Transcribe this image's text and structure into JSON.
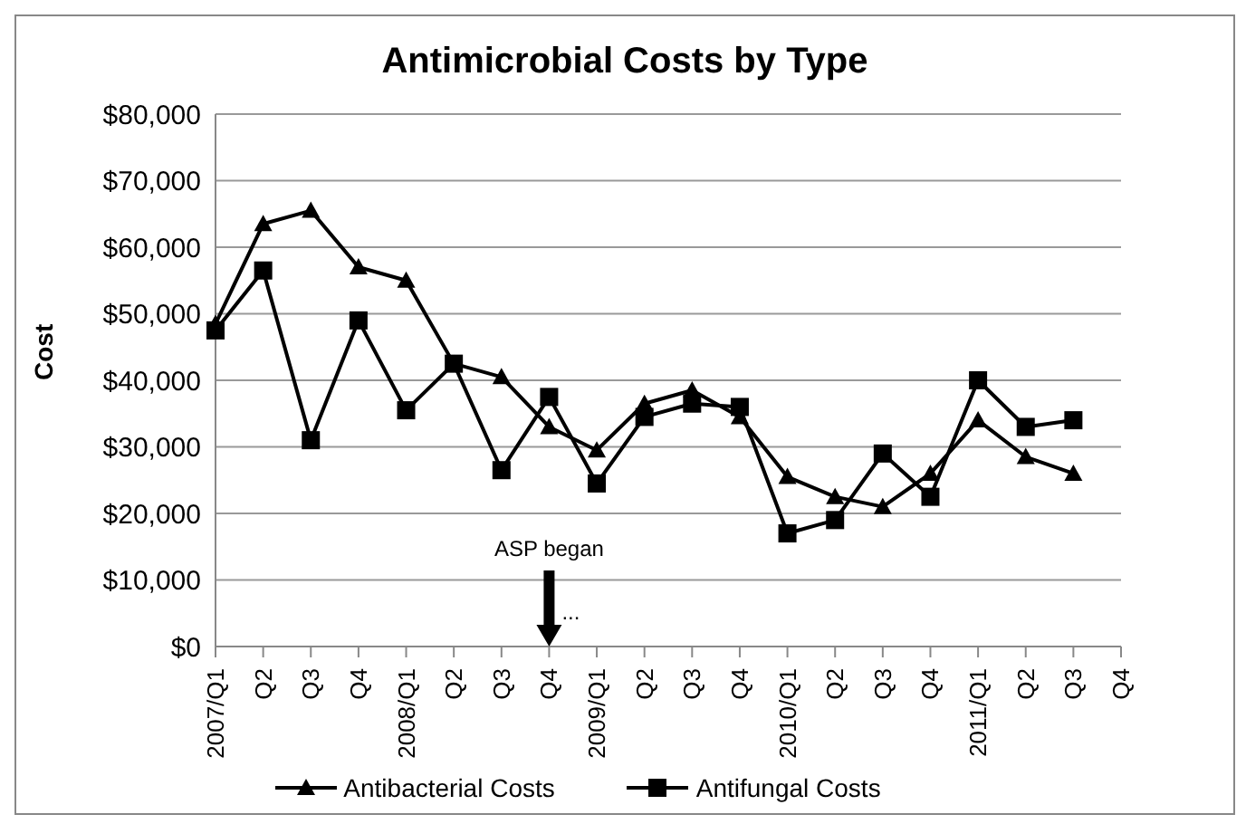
{
  "chart_data": {
    "type": "line",
    "title": "Antimicrobial Costs by Type",
    "ylabel": "Cost",
    "categories": [
      "2007/Q1",
      "Q2",
      "Q3",
      "Q4",
      "2008/Q1",
      "Q2",
      "Q3",
      "Q4",
      "2009/Q1",
      "Q2",
      "Q3",
      "Q4",
      "2010/Q1",
      "Q2",
      "Q3",
      "Q4",
      "2011/Q1",
      "Q2",
      "Q3",
      "Q4"
    ],
    "series": [
      {
        "name": "Antibacterial Costs",
        "color": "#000000",
        "marker": "triangle",
        "values": [
          48500,
          63500,
          65500,
          57000,
          55000,
          42500,
          40500,
          33000,
          29500,
          36500,
          38500,
          34500,
          25500,
          22500,
          21000,
          26000,
          34000,
          28500,
          26000,
          null
        ]
      },
      {
        "name": "Antifungal Costs",
        "color": "#000000",
        "marker": "square",
        "values": [
          47500,
          56500,
          31000,
          49000,
          35500,
          42500,
          26500,
          37500,
          24500,
          34500,
          36500,
          36000,
          17000,
          19000,
          29000,
          22500,
          40000,
          33000,
          34000,
          null
        ]
      }
    ],
    "ylim": [
      0,
      80000
    ],
    "yticks": [
      {
        "value": 0,
        "label": "$0"
      },
      {
        "value": 10000,
        "label": "$10,000"
      },
      {
        "value": 20000,
        "label": "$20,000"
      },
      {
        "value": 30000,
        "label": "$30,000"
      },
      {
        "value": 40000,
        "label": "$40,000"
      },
      {
        "value": 50000,
        "label": "$50,000"
      },
      {
        "value": 60000,
        "label": "$60,000"
      },
      {
        "value": 70000,
        "label": "$70,000"
      },
      {
        "value": 80000,
        "label": "$80,000"
      }
    ],
    "grid": "y",
    "legend": "bottom",
    "line_style": "solid",
    "annotations": [
      "ASP began",
      "..."
    ]
  }
}
